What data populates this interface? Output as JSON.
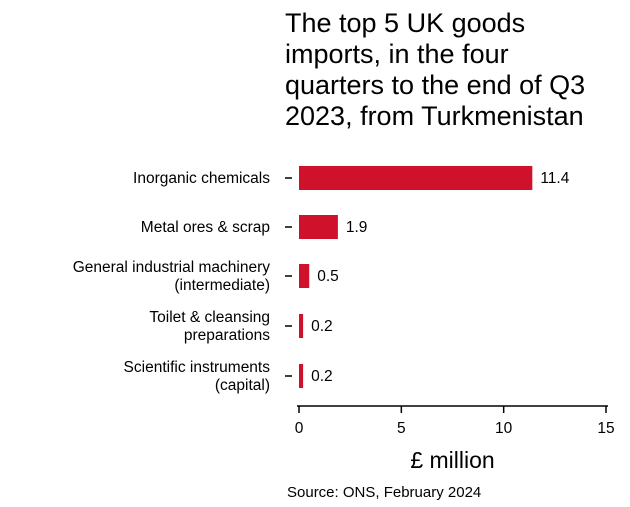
{
  "chart_data": {
    "type": "bar",
    "orientation": "horizontal",
    "title_lines": [
      "The top 5 UK goods",
      "imports, in the four",
      "quarters to the end of Q3",
      "2023, from Turkmenistan"
    ],
    "categories": [
      [
        "Inorganic chemicals"
      ],
      [
        "Metal ores & scrap"
      ],
      [
        "General industrial machinery",
        "(intermediate)"
      ],
      [
        "Toilet & cleansing",
        "preparations"
      ],
      [
        "Scientific instruments",
        "(capital)"
      ]
    ],
    "values": [
      11.4,
      1.9,
      0.5,
      0.2,
      0.2
    ],
    "value_labels": [
      "11.4",
      "1.9",
      "0.5",
      "0.2",
      "0.2"
    ],
    "xlabel": "£ million",
    "xlim": [
      0,
      15
    ],
    "xticks": [
      0,
      5,
      10,
      15
    ],
    "grid": false,
    "bar_color": "#d0112b"
  },
  "source": "Source: ONS, February 2024"
}
